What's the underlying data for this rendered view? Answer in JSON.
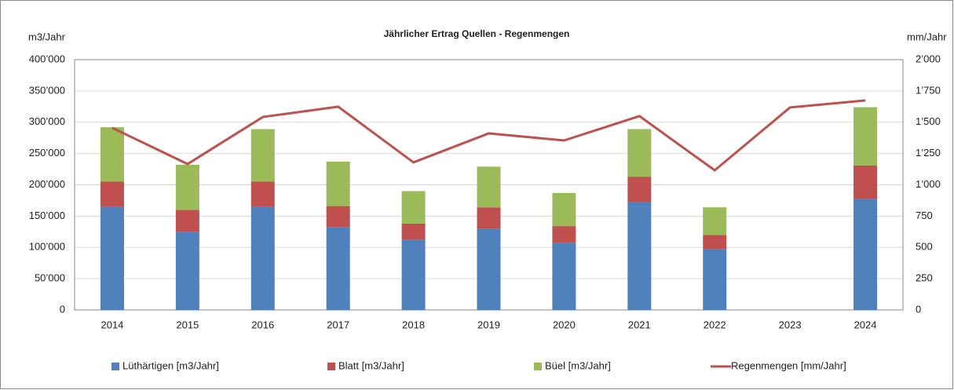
{
  "chart_data": {
    "type": "bar",
    "stacked": true,
    "title": "Jährlicher Ertrag Quellen - Regenmengen",
    "y_label": "m3/Jahr",
    "y2_label": "mm/Jahr",
    "categories": [
      "2014",
      "2015",
      "2016",
      "2017",
      "2018",
      "2019",
      "2020",
      "2021",
      "2022",
      "2023",
      "2024"
    ],
    "series": [
      {
        "name": "Lüthärtigen [m3/Jahr]",
        "color": "#4f81bd",
        "values": [
          165000,
          125000,
          165000,
          132000,
          112000,
          130000,
          107000,
          173000,
          97000,
          null,
          177000
        ]
      },
      {
        "name": "Blatt  [m3/Jahr]",
        "color": "#c0504d",
        "values": [
          40000,
          35000,
          40000,
          34000,
          26000,
          34000,
          27000,
          40000,
          23000,
          null,
          54000
        ]
      },
      {
        "name": "Büel [m3/Jahr]",
        "color": "#9bbb59",
        "values": [
          87000,
          72000,
          84000,
          71000,
          52000,
          65000,
          53000,
          76000,
          44000,
          null,
          93000
        ]
      },
      {
        "name": "Regenmengen [mm/Jahr]",
        "color": "#c0504d",
        "type": "line",
        "axis": "y2",
        "values": [
          1455,
          1166,
          1542,
          1624,
          1179,
          1411,
          1354,
          1549,
          1116,
          1618,
          1674
        ]
      }
    ],
    "ylim": [
      0,
      400000
    ],
    "yticks": [
      0,
      {
        "value": 50000,
        "label": "50’000"
      },
      {
        "value": 100000,
        "label": "100’000"
      },
      {
        "value": 150000,
        "label": "150’000"
      },
      {
        "value": 200000,
        "label": "200’000"
      },
      {
        "value": 250000,
        "label": "250’000"
      },
      {
        "value": 300000,
        "label": "300’000"
      },
      {
        "value": 350000,
        "label": "350’000"
      },
      {
        "value": 400000,
        "label": "400’000"
      }
    ],
    "y2lim": [
      0,
      2000
    ],
    "y2ticks": [
      0,
      250,
      500,
      750,
      {
        "value": 1000,
        "label": "1’000"
      },
      {
        "value": 1250,
        "label": "1’250"
      },
      {
        "value": 1500,
        "label": "1’500"
      },
      {
        "value": 1750,
        "label": "1’750"
      },
      {
        "value": 2000,
        "label": "2’000"
      }
    ],
    "grid": true,
    "legend": "bottom"
  }
}
